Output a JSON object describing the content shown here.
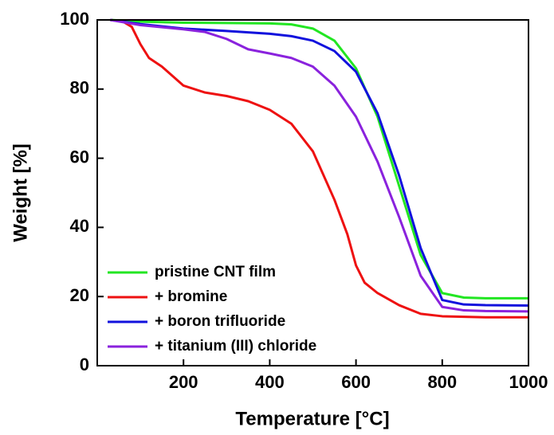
{
  "chart_data": {
    "type": "line",
    "x_label": "Temperature [°C]",
    "y_label": "Weight [%]",
    "xlim": [
      0,
      1000
    ],
    "xticks": [
      200,
      400,
      600,
      800,
      1000
    ],
    "ylim": [
      0,
      100
    ],
    "yticks": [
      0,
      20,
      40,
      60,
      80,
      100
    ],
    "legend": "lower left",
    "series": [
      {
        "name": "pristine CNT film",
        "color": "#22e622",
        "x": [
          30,
          100,
          200,
          300,
          400,
          450,
          500,
          550,
          600,
          650,
          700,
          750,
          800,
          850,
          900,
          1000
        ],
        "values": [
          100,
          99.5,
          99.2,
          99.1,
          99,
          98.7,
          97.5,
          94,
          86,
          72,
          52,
          32,
          21,
          19.7,
          19.5,
          19.5
        ]
      },
      {
        "name": "+ bromine",
        "color": "#ee1111",
        "x": [
          30,
          60,
          80,
          100,
          120,
          150,
          200,
          250,
          300,
          350,
          400,
          450,
          500,
          550,
          580,
          600,
          620,
          650,
          700,
          750,
          800,
          900,
          1000
        ],
        "values": [
          100,
          99.5,
          98,
          93,
          89,
          86.5,
          81,
          79,
          78,
          76.5,
          74,
          70,
          62,
          48,
          38,
          29,
          24,
          21,
          17.5,
          15,
          14.3,
          14,
          14
        ]
      },
      {
        "name": "+ boron trifluoride",
        "color": "#1111dd",
        "x": [
          30,
          100,
          200,
          300,
          400,
          450,
          500,
          550,
          600,
          650,
          700,
          750,
          800,
          850,
          900,
          1000
        ],
        "values": [
          100,
          98.8,
          97.5,
          96.8,
          96,
          95.3,
          94,
          91,
          85,
          73,
          55,
          34,
          19,
          17.7,
          17.5,
          17.4
        ]
      },
      {
        "name": "+ titanium (III) chloride",
        "color": "#8a22dd",
        "x": [
          30,
          100,
          200,
          250,
          300,
          350,
          400,
          450,
          500,
          550,
          600,
          650,
          700,
          750,
          800,
          850,
          900,
          1000
        ],
        "values": [
          100,
          98.5,
          97.3,
          96.5,
          94.5,
          91.5,
          90.3,
          89,
          86.5,
          81,
          72,
          59,
          43,
          26,
          17,
          16,
          15.8,
          15.7
        ]
      }
    ]
  }
}
